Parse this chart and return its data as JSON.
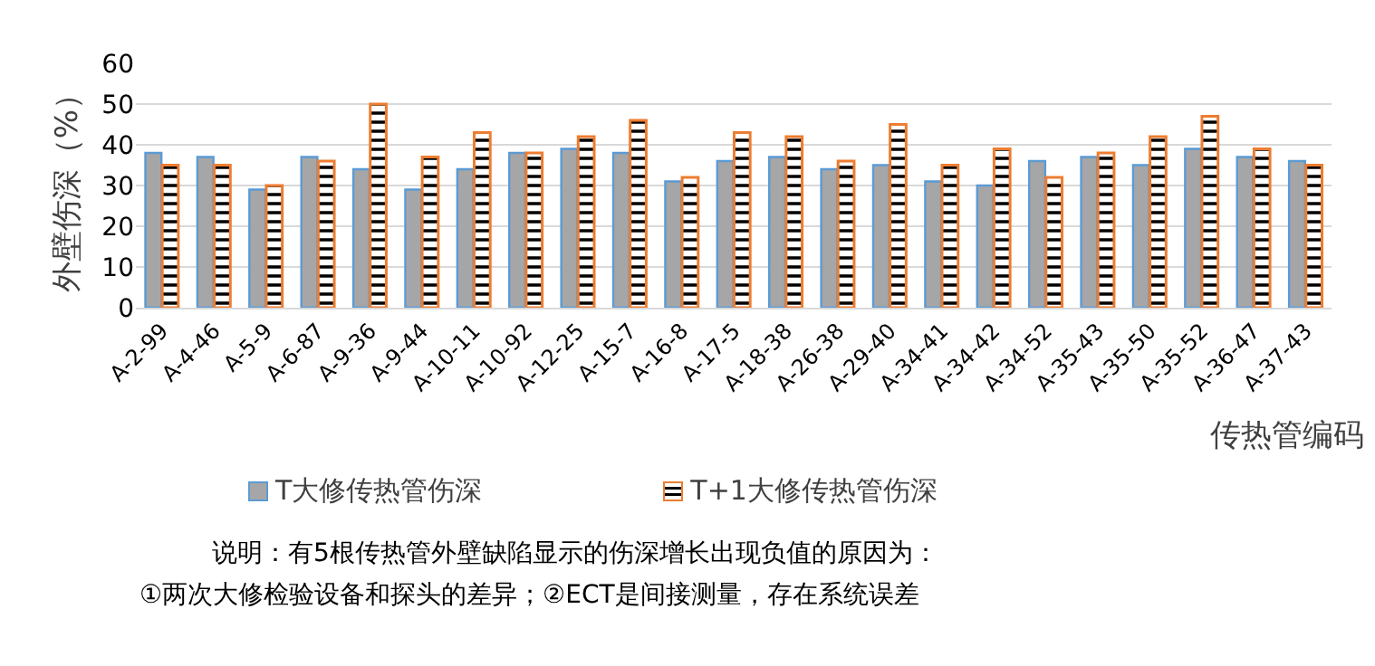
{
  "chart_data": {
    "type": "bar",
    "xlabel": "传热管编码",
    "ylabel": "外壁伤深（%）",
    "categories": [
      "A-2-99",
      "A-4-46",
      "A-5-9",
      "A-6-87",
      "A-9-36",
      "A-9-44",
      "A-10-11",
      "A-10-92",
      "A-12-25",
      "A-15-7",
      "A-16-8",
      "A-17-5",
      "A-18-38",
      "A-26-38",
      "A-29-40",
      "A-34-41",
      "A-34-42",
      "A-34-52",
      "A-35-43",
      "A-35-50",
      "A-35-52",
      "A-36-47",
      "A-37-43"
    ],
    "series": [
      {
        "name": "T大修传热管伤深",
        "color": "#a6a6a6",
        "values": [
          38,
          37,
          29,
          37,
          34,
          29,
          34,
          38,
          39,
          38,
          31,
          36,
          37,
          34,
          35,
          31,
          30,
          36,
          37,
          35,
          39,
          37,
          36
        ]
      },
      {
        "name": "T+1大修传热管伤深",
        "color": "#ed7d31",
        "values": [
          35,
          35,
          30,
          36,
          50,
          37,
          43,
          38,
          42,
          46,
          32,
          43,
          42,
          36,
          45,
          35,
          39,
          32,
          38,
          42,
          47,
          39,
          35
        ]
      }
    ],
    "ylim": [
      0,
      60
    ],
    "yticks": [
      0,
      10,
      20,
      30,
      40,
      50,
      60
    ],
    "grid": "y",
    "legend": "bottom",
    "annotations": [
      "说明：有5根传热管外壁缺陷显示的伤深增长出现负值的原因为：",
      "①两次大修检验设备和探头的差异；②ECT是间接测量，存在系统误差"
    ]
  }
}
